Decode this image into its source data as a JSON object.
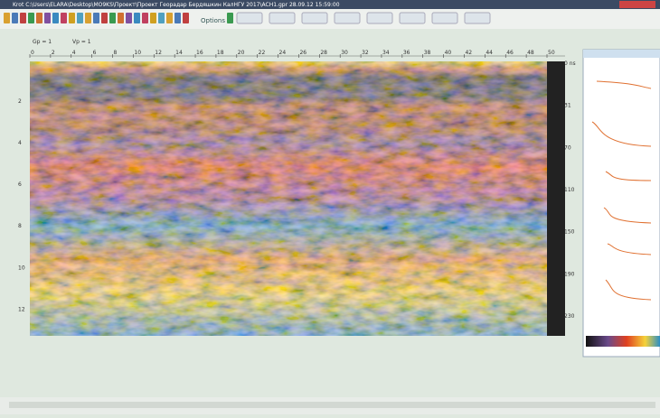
{
  "window": {
    "title": "Krot  C:\\Users\\ELARA\\Desktop\\MO9KS\\Проект\\Проект Георадар Бердяшкин КалНГУ 2017\\ACH1.gpr    28.09.12  15:59:00"
  },
  "toolbar": {
    "options": "Options"
  },
  "radargram": {
    "gain_label": "Gp = 1",
    "velocity_label": "Vp = 1",
    "top_ticks": [
      "0",
      "2",
      "4",
      "6",
      "8",
      "10",
      "12",
      "14",
      "16",
      "18",
      "20",
      "22",
      "24",
      "26",
      "28",
      "30",
      "32",
      "34",
      "36",
      "38",
      "40",
      "42",
      "44",
      "46",
      "48",
      "50"
    ],
    "left_ticks": [
      "2",
      "4",
      "6",
      "8",
      "10",
      "12"
    ],
    "right_ticks": [
      "0 ns",
      "31",
      "70",
      "110",
      "150",
      "190",
      "230"
    ]
  }
}
